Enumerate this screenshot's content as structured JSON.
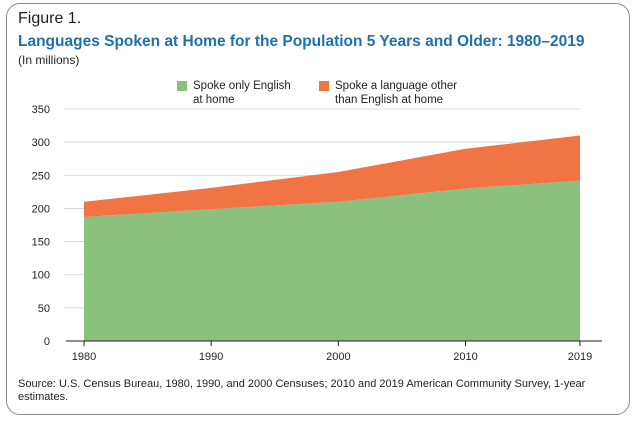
{
  "figure_label": "Figure 1.",
  "title": "Languages Spoken at Home for the Population 5 Years and Older: 1980–2019",
  "subtitle": "(In millions)",
  "source": "Source: U.S. Census Bureau, 1980, 1990, and 2000 Censuses; 2010 and 2019 American Community Survey, 1-year estimates.",
  "colors": {
    "english": "#8cc07f",
    "other": "#f07444",
    "axis": "#231f20",
    "grid": "#cfcfcf",
    "title": "#1f6fb2"
  },
  "chart_data": {
    "type": "area",
    "stacked": true,
    "x": [
      1980,
      1990,
      2000,
      2010,
      2019
    ],
    "x_ticks": [
      "1980",
      "1990",
      "2000",
      "2010",
      "2019"
    ],
    "ylim": [
      0,
      350
    ],
    "y_ticks": [
      "0",
      "50",
      "100",
      "150",
      "200",
      "250",
      "300",
      "350"
    ],
    "grid": "horizontal",
    "legend_position": "top",
    "series": [
      {
        "name": "Spoke only English at home",
        "values": [
          187,
          199,
          210,
          230,
          242
        ]
      },
      {
        "name": "Spoke a language other than English at home",
        "values": [
          23,
          32,
          45,
          60,
          68
        ]
      }
    ]
  }
}
